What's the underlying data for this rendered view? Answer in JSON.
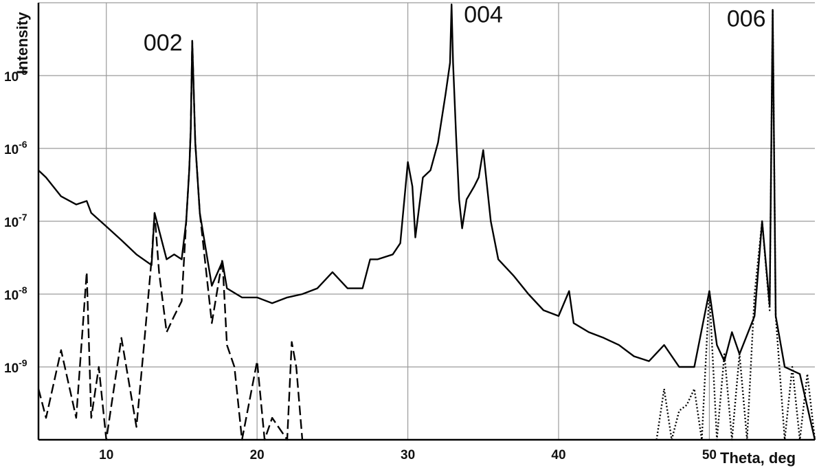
{
  "chart_data": {
    "type": "line",
    "xlabel": "Theta, deg",
    "ylabel": "Intensity",
    "xlim": [
      5.5,
      57
    ],
    "ylim": [
      1e-10,
      0.0001
    ],
    "y_scale": "log",
    "grid": true,
    "x_ticks": [
      {
        "value": 10,
        "label": "10"
      },
      {
        "value": 20,
        "label": "20"
      },
      {
        "value": 30,
        "label": "30"
      },
      {
        "value": 40,
        "label": "40"
      },
      {
        "value": 50,
        "label": "50"
      }
    ],
    "y_ticks": [
      {
        "value": 1e-05,
        "base": "10",
        "exp": "-5"
      },
      {
        "value": 1e-06,
        "base": "10",
        "exp": "-6"
      },
      {
        "value": 1e-07,
        "base": "10",
        "exp": "-7"
      },
      {
        "value": 1e-08,
        "base": "10",
        "exp": "-8"
      },
      {
        "value": 1e-09,
        "base": "10",
        "exp": "-9"
      }
    ],
    "annotations": [
      {
        "text": "002",
        "x": 15.6,
        "y": 3e-05
      },
      {
        "text": "004",
        "x": 32.9,
        "y": 9.5e-05
      },
      {
        "text": "006",
        "x": 54.2,
        "y": 8e-05
      }
    ],
    "series": [
      {
        "style": "solid",
        "x": [
          5.5,
          6,
          7,
          8,
          8.7,
          9,
          10,
          11,
          12,
          13,
          13.2,
          14,
          14.5,
          15,
          15.3,
          15.5,
          15.6,
          15.7,
          15.9,
          16.2,
          17,
          17.7,
          18,
          19,
          20,
          21,
          22,
          23,
          24,
          25,
          26,
          27,
          27.5,
          28,
          29,
          29.5,
          30,
          30.3,
          30.5,
          31,
          31.5,
          32,
          32.5,
          32.8,
          32.9,
          33,
          33.2,
          33.4,
          33.6,
          33.9,
          34.4,
          34.7,
          35,
          35.5,
          36,
          37,
          38,
          39,
          40,
          40.7,
          41,
          42,
          43,
          44,
          45,
          46,
          47,
          48,
          49,
          50,
          50.5,
          51,
          51.5,
          52,
          53,
          53.5,
          54,
          54.2,
          54.4,
          55,
          56,
          57
        ],
        "y": [
          5e-07,
          4e-07,
          2.2e-07,
          1.7e-07,
          1.9e-07,
          1.3e-07,
          8.5e-08,
          5.5e-08,
          3.5e-08,
          2.5e-08,
          1.3e-07,
          3e-08,
          3.5e-08,
          3e-08,
          1e-07,
          5e-07,
          1.8e-06,
          3e-05,
          1.2e-06,
          1.3e-07,
          1.3e-08,
          2.8e-08,
          1.2e-08,
          9e-09,
          9e-09,
          7.5e-09,
          9e-09,
          1e-08,
          1.2e-08,
          2e-08,
          1.2e-08,
          1.2e-08,
          3e-08,
          3e-08,
          3.5e-08,
          5e-08,
          6.5e-07,
          3e-07,
          6e-08,
          4e-07,
          5e-07,
          1.2e-06,
          5.5e-06,
          1.5e-05,
          9.5e-05,
          1.5e-05,
          1.5e-06,
          2e-07,
          8e-08,
          2e-07,
          3e-07,
          4e-07,
          9.5e-07,
          1e-07,
          3e-08,
          1.8e-08,
          1e-08,
          6e-09,
          5e-09,
          1.1e-08,
          4e-09,
          3e-09,
          2.5e-09,
          2e-09,
          1.4e-09,
          1.2e-09,
          2e-09,
          1e-09,
          1e-09,
          1.1e-08,
          2e-09,
          1.2e-09,
          3e-09,
          1.5e-09,
          5e-09,
          1e-07,
          7e-09,
          8e-05,
          5e-09,
          1e-09,
          8e-10,
          1e-10
        ]
      },
      {
        "style": "dashed",
        "x": [
          5.5,
          6,
          7,
          8,
          8.7,
          9,
          9.5,
          10,
          11,
          12,
          12.5,
          13,
          13.2,
          13.5,
          14,
          14.5,
          15,
          15.3,
          15.5,
          15.6,
          15.7,
          15.9,
          16.2,
          17,
          17.7,
          18,
          18.5,
          19,
          20,
          20.5,
          21,
          22,
          22.3,
          22.6,
          23
        ],
        "y": [
          5e-10,
          2e-10,
          1.7e-09,
          2e-10,
          2e-08,
          2e-10,
          1e-09,
          1e-10,
          2.5e-09,
          1.5e-10,
          2e-09,
          3e-08,
          1.3e-07,
          2e-08,
          3e-09,
          5e-09,
          8e-09,
          1e-07,
          5e-07,
          1.8e-06,
          3e-05,
          1.2e-06,
          1.3e-07,
          4e-09,
          3e-08,
          2e-09,
          1e-09,
          1e-10,
          1.2e-09,
          1e-10,
          2e-10,
          1e-10,
          2.2e-09,
          1e-09,
          1e-10
        ]
      },
      {
        "style": "dotted",
        "x": [
          46.5,
          47,
          47.5,
          48,
          48.5,
          49,
          49.5,
          50,
          50.5,
          51,
          51.5,
          52,
          52.5,
          53,
          53.5,
          54,
          54.2,
          54.4,
          55,
          55.5,
          56,
          56.5,
          57
        ],
        "y": [
          1e-10,
          5e-10,
          1e-10,
          2.5e-10,
          3e-10,
          5e-10,
          1e-10,
          1.1e-08,
          1e-10,
          1.5e-09,
          1e-10,
          1.5e-09,
          1e-10,
          1e-08,
          1e-07,
          6e-09,
          8e-05,
          5e-09,
          1e-10,
          1e-09,
          1e-10,
          8e-10,
          1e-10
        ]
      }
    ]
  }
}
